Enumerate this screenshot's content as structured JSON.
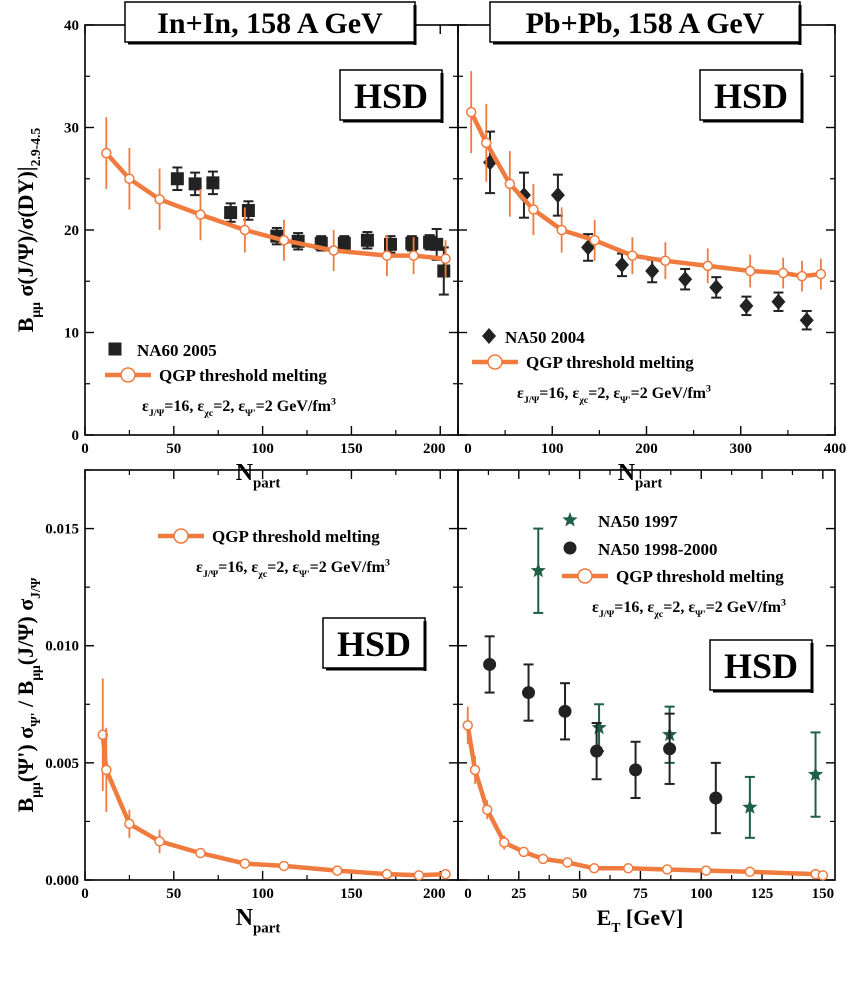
{
  "colors": {
    "model": "#f07b3f",
    "na60": "#222222",
    "na50_2004": "#222222",
    "na50_1998": "#222222",
    "na50_1997": "#1f5f46",
    "frame": "#000000"
  },
  "shared": {
    "hsd_label": "HSD",
    "model_label": "QGP threshold melting",
    "params_label": "ε_{J/Ψ}=16, ε_{χc}=2, ε_{Ψ'}=2 GeV/fm³"
  },
  "chart_data": [
    {
      "id": "inin",
      "type": "scatter",
      "title": "In+In, 158 A GeV",
      "xlabel": "N_part",
      "ylabel": "B_μμ σ(J/Ψ)/σ(DY)|_2.9-4.5",
      "xlim": [
        0,
        210
      ],
      "ylim": [
        0,
        40
      ],
      "xticks": [
        0,
        50,
        100,
        150,
        200
      ],
      "yticks": [
        0,
        10,
        20,
        30,
        40
      ],
      "ytick_labels": [
        "0",
        "10",
        "20",
        "30",
        "40"
      ],
      "legend_position": "bottom-left",
      "series": [
        {
          "name": "NA60 2005",
          "kind": "data",
          "marker": "square",
          "x": [
            52,
            62,
            72,
            82,
            92,
            108,
            120,
            133,
            146,
            159,
            172,
            184,
            194,
            198,
            202
          ],
          "y": [
            25.0,
            24.5,
            24.6,
            21.7,
            21.9,
            19.4,
            18.9,
            18.7,
            18.7,
            19.0,
            18.6,
            18.7,
            18.8,
            18.6,
            16.0
          ],
          "err": [
            1.1,
            1.1,
            1.1,
            0.9,
            0.9,
            0.8,
            0.8,
            0.7,
            0.7,
            0.8,
            0.8,
            0.7,
            0.7,
            1.5,
            2.3
          ]
        },
        {
          "name": "QGP threshold melting",
          "kind": "model",
          "x": [
            12,
            25,
            42,
            65,
            90,
            112,
            140,
            170,
            185,
            203
          ],
          "y": [
            27.5,
            25.0,
            23.0,
            21.5,
            20.0,
            19.0,
            18.0,
            17.5,
            17.5,
            17.2
          ],
          "err": [
            3.5,
            3.0,
            3.0,
            2.5,
            2.2,
            2.0,
            2.0,
            2.0,
            1.8,
            1.8
          ]
        }
      ]
    },
    {
      "id": "pbpb",
      "type": "scatter",
      "title": "Pb+Pb, 158 A GeV",
      "xlabel": "N_part",
      "ylabel": "",
      "xlim": [
        0,
        400
      ],
      "ylim": [
        0,
        40
      ],
      "xticks": [
        0,
        100,
        200,
        300,
        400
      ],
      "yticks": [
        0,
        10,
        20,
        30,
        40
      ],
      "legend_position": "bottom-left",
      "series": [
        {
          "name": "NA50 2004",
          "kind": "data",
          "marker": "diamond",
          "x": [
            34,
            70,
            106,
            138,
            174,
            206,
            241,
            274,
            306,
            340,
            370
          ],
          "y": [
            26.6,
            23.4,
            23.4,
            18.3,
            16.6,
            16.0,
            15.2,
            14.4,
            12.6,
            13.0,
            11.2
          ],
          "err": [
            3.0,
            2.2,
            2.0,
            1.3,
            1.1,
            1.1,
            1.0,
            1.0,
            0.9,
            0.9,
            0.9
          ]
        },
        {
          "name": "QGP threshold melting",
          "kind": "model",
          "x": [
            14,
            30,
            55,
            80,
            110,
            145,
            185,
            220,
            265,
            310,
            345,
            365,
            385
          ],
          "y": [
            31.5,
            28.5,
            24.5,
            22.0,
            20.0,
            19.0,
            17.5,
            17.0,
            16.5,
            16.0,
            15.8,
            15.5,
            15.7
          ],
          "err": [
            4.0,
            3.8,
            3.2,
            2.5,
            2.2,
            2.0,
            1.8,
            1.8,
            1.7,
            1.6,
            1.5,
            1.5,
            1.5
          ]
        }
      ]
    },
    {
      "id": "psi_npart",
      "type": "line",
      "title": "",
      "xlabel": "N_part",
      "ylabel": "B_μμ(Ψ') σ_Ψ' / B_μμ(J/Ψ) σ_J/Ψ",
      "xlim": [
        0,
        210
      ],
      "ylim": [
        0,
        0.0175
      ],
      "xticks": [
        0,
        50,
        100,
        150,
        200
      ],
      "yticks": [
        0,
        0.005,
        0.01,
        0.015
      ],
      "ytick_labels": [
        "0.000",
        "0.005",
        "0.010",
        "0.015"
      ],
      "legend_position": "top-right",
      "series": [
        {
          "name": "QGP threshold melting",
          "kind": "model",
          "x": [
            10,
            12,
            25,
            42,
            65,
            90,
            112,
            142,
            170,
            188,
            203
          ],
          "y": [
            0.0062,
            0.0047,
            0.0024,
            0.00165,
            0.00115,
            0.0007,
            0.0006,
            0.0004,
            0.00025,
            0.0002,
            0.00025
          ],
          "err": [
            0.0024,
            0.0018,
            0.0006,
            0.0005,
            0.0002,
            0.0002,
            0.00015,
            0.00012,
            0.0001,
            0.0001,
            0.0001
          ]
        }
      ]
    },
    {
      "id": "psi_et",
      "type": "scatter",
      "title": "",
      "xlabel": "E_T [GeV]",
      "ylabel": "",
      "xlim": [
        0,
        155
      ],
      "ylim": [
        0,
        0.0175
      ],
      "xticks": [
        0,
        25,
        50,
        75,
        100,
        125,
        150
      ],
      "yticks": [
        0,
        0.005,
        0.01,
        0.015
      ],
      "legend_position": "top-right",
      "series": [
        {
          "name": "NA50 1997",
          "kind": "data",
          "marker": "star",
          "x": [
            33,
            58,
            87,
            120,
            147
          ],
          "y": [
            0.0132,
            0.0065,
            0.0062,
            0.0031,
            0.0045
          ],
          "err": [
            0.0018,
            0.001,
            0.0012,
            0.0013,
            0.0018
          ]
        },
        {
          "name": "NA50 1998-2000",
          "kind": "data",
          "marker": "circle",
          "x": [
            13,
            29,
            44,
            57,
            73,
            87,
            106
          ],
          "y": [
            0.0092,
            0.008,
            0.0072,
            0.0055,
            0.0047,
            0.0056,
            0.0035
          ],
          "err": [
            0.0012,
            0.0012,
            0.0012,
            0.0012,
            0.0012,
            0.0015,
            0.0015
          ]
        },
        {
          "name": "QGP threshold melting",
          "kind": "model",
          "x": [
            4,
            7,
            12,
            19,
            27,
            35,
            45,
            56,
            70,
            86,
            102,
            120,
            147,
            150
          ],
          "y": [
            0.0066,
            0.0047,
            0.003,
            0.0016,
            0.0012,
            0.0009,
            0.00075,
            0.0005,
            0.0005,
            0.00045,
            0.0004,
            0.00035,
            0.00025,
            0.0002
          ],
          "err": [
            0.0008,
            0.0006,
            0.0004,
            0.0003,
            0.0002,
            0.00015,
            0.0001,
            0.0001,
            0.0001,
            0.0001,
            0.0001,
            0.0001,
            0.0001,
            0.0001
          ]
        }
      ]
    }
  ]
}
